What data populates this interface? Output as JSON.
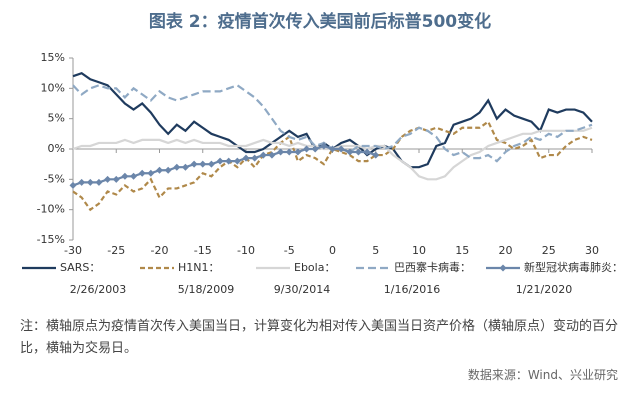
{
  "chart_data": {
    "type": "line",
    "title": "图表 2：疫情首次传入美国前后标普500变化",
    "x": [
      -30,
      -29,
      -28,
      -27,
      -26,
      -25,
      -24,
      -23,
      -22,
      -21,
      -20,
      -19,
      -18,
      -17,
      -16,
      -15,
      -14,
      -13,
      -12,
      -11,
      -10,
      -9,
      -8,
      -7,
      -6,
      -5,
      -4,
      -3,
      -2,
      -1,
      0,
      1,
      2,
      3,
      4,
      5,
      6,
      7,
      8,
      9,
      10,
      11,
      12,
      13,
      14,
      15,
      16,
      17,
      18,
      19,
      20,
      21,
      22,
      23,
      24,
      25,
      26,
      27,
      28,
      29,
      30
    ],
    "xlim": [
      -30,
      30
    ],
    "xticks": [
      -30,
      -25,
      -20,
      -15,
      -10,
      -5,
      0,
      5,
      10,
      15,
      20,
      25,
      30
    ],
    "ylim": [
      -15,
      15
    ],
    "yticks": [
      {
        "value": 15,
        "label": "15%"
      },
      {
        "value": 10,
        "label": "10%"
      },
      {
        "value": 5,
        "label": "5%"
      },
      {
        "value": 0,
        "label": "0%"
      },
      {
        "value": -5,
        "label": "-5%"
      },
      {
        "value": -10,
        "label": "-10%"
      },
      {
        "value": -15,
        "label": "-15%"
      }
    ],
    "series": [
      {
        "name": "SARS：",
        "date": "2/26/2003",
        "color": "#1f3b5e",
        "values": [
          12,
          12.5,
          11.5,
          11,
          10.5,
          9,
          7.5,
          6.5,
          7.5,
          6,
          4,
          2.5,
          4,
          3,
          4.5,
          3.5,
          2.5,
          2,
          1.5,
          0.5,
          -0.5,
          -0.5,
          0,
          1,
          2,
          3,
          2,
          2.5,
          0,
          1,
          0,
          1,
          1.5,
          0.5,
          -1,
          0,
          0.5,
          0,
          -2,
          -3,
          -3,
          -2.5,
          0.5,
          1,
          4,
          4.5,
          5,
          6,
          8,
          5,
          6.5,
          5.5,
          5,
          4.5,
          3,
          6.5,
          6,
          6.5,
          6.5,
          6,
          4.5
        ]
      },
      {
        "name": "H1N1：",
        "date": "5/18/2009",
        "color": "#b0894a",
        "dash": "5,3",
        "values": [
          -7,
          -8,
          -10,
          -9,
          -7,
          -7.5,
          -6,
          -7,
          -6.5,
          -5,
          -8,
          -6.5,
          -6.5,
          -6,
          -5.5,
          -4,
          -4.5,
          -3,
          -2,
          -3,
          -1.5,
          -3,
          -1,
          -0.5,
          1,
          2,
          -2,
          -1,
          -1.5,
          -2.5,
          0,
          -0.5,
          -1,
          -2,
          -2,
          -1,
          -1,
          0,
          2,
          3,
          3.5,
          3,
          3.5,
          3,
          2.5,
          3.5,
          3.5,
          3.5,
          4.5,
          1.5,
          1,
          0,
          0.5,
          1.5,
          -1.5,
          -1,
          -1,
          0.5,
          1.5,
          2,
          1.5
        ]
      },
      {
        "name": "Ebola：",
        "date": "9/30/2014",
        "color": "#d6d6d6",
        "values": [
          0,
          0.5,
          0.5,
          1,
          1,
          1,
          1.5,
          1,
          1.5,
          1.5,
          1.5,
          1,
          1.5,
          1,
          1.5,
          1,
          1,
          1,
          0.5,
          0.5,
          0.5,
          1,
          1.5,
          1,
          1,
          0.5,
          1,
          0.5,
          0.5,
          0,
          0,
          0.5,
          0.5,
          0.5,
          0,
          0.5,
          0.5,
          -1,
          -2,
          -3,
          -4.5,
          -5,
          -5,
          -4.5,
          -3,
          -2,
          -1,
          -0.5,
          0.5,
          1,
          1.5,
          2,
          2.5,
          2.5,
          3,
          3,
          3,
          3,
          3,
          3,
          3.5
        ]
      },
      {
        "name": "巴西寨卡病毒：",
        "date": "1/16/2016",
        "color": "#8fa9c4",
        "dash": "8,4",
        "values": [
          10.5,
          9,
          10,
          10.5,
          10,
          10,
          8.5,
          10,
          9,
          8,
          9.5,
          8.5,
          8,
          8.5,
          9,
          9.5,
          9.5,
          9.5,
          10,
          10.5,
          9.5,
          8.5,
          7,
          5,
          3,
          2,
          1.5,
          2,
          0.5,
          1,
          0,
          0,
          -0.5,
          0.5,
          0.5,
          0.5,
          0,
          0.5,
          2,
          2.5,
          3.5,
          3,
          2,
          0,
          -1,
          -0.5,
          -1.5,
          -1.5,
          -1,
          -2,
          -0.5,
          0.5,
          1,
          2,
          1.5,
          2.5,
          2,
          3,
          3,
          3.5,
          4
        ]
      },
      {
        "name": "新型冠状病毒肺炎：",
        "date": "1/21/2020",
        "color": "#6b86aa",
        "marker": "diamond",
        "values": [
          -6,
          -5.5,
          -5.5,
          -5.5,
          -5,
          -5,
          -4.5,
          -4.5,
          -4,
          -4,
          -3.5,
          -3.5,
          -3,
          -3,
          -2.5,
          -2.5,
          -2.5,
          -2,
          -2,
          -2,
          -1.5,
          -1.5,
          -1,
          -1,
          -0.5,
          -0.5,
          -0.5,
          0,
          0,
          0.5,
          0,
          0,
          -0.5,
          -0.5,
          -0.5,
          -1,
          null,
          null,
          null,
          null,
          null,
          null,
          null,
          null,
          null,
          null,
          null,
          null,
          null,
          null,
          null,
          null,
          null,
          null,
          null,
          null,
          null,
          null,
          null,
          null,
          null
        ]
      }
    ]
  },
  "note": "注：横轴原点为疫情首次传入美国当日，计算变化为相对传入美国当日资产价格（横轴原点）变动的百分比，横轴为交易日。",
  "source": "数据来源：Wind、兴业研究"
}
